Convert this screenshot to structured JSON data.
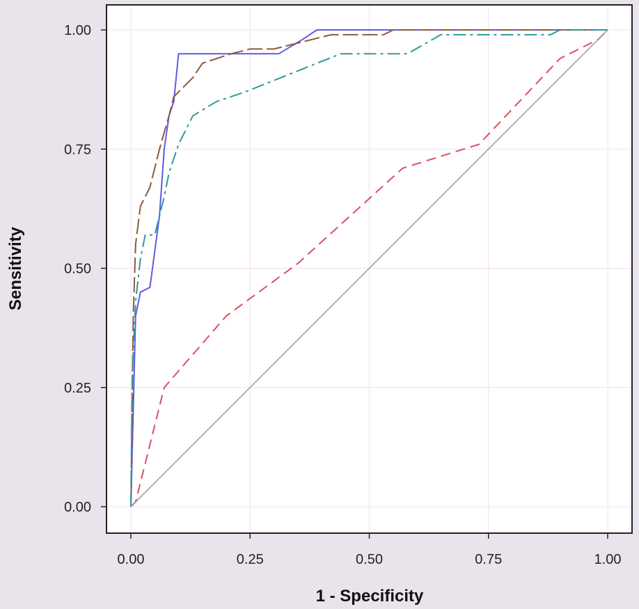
{
  "chart_data": {
    "type": "line",
    "title": "",
    "xlabel": "1 - Specificity",
    "ylabel": "Sensitivity",
    "xlim": [
      0,
      1
    ],
    "ylim": [
      0,
      1
    ],
    "xticks": [
      "0.00",
      "0.25",
      "0.50",
      "0.75",
      "1.00"
    ],
    "yticks": [
      "0.00",
      "0.25",
      "0.50",
      "0.75",
      "1.00"
    ],
    "grid": true,
    "legend": "none",
    "colors": {
      "background": "#e9e3ec",
      "plot_background": "#ffffff",
      "grid": "#f2dff2",
      "axis": "#222222"
    },
    "series": [
      {
        "color": "#5c5ce6",
        "dash": "solid",
        "x": [
          0,
          0.005,
          0.01,
          0.02,
          0.04,
          0.06,
          0.07,
          0.08,
          0.09,
          0.1,
          0.31,
          0.36,
          0.39,
          1.0
        ],
        "y": [
          0,
          0.2,
          0.4,
          0.45,
          0.46,
          0.61,
          0.75,
          0.82,
          0.85,
          0.95,
          0.95,
          0.98,
          1.0,
          1.0
        ]
      },
      {
        "color": "#8c5a3c",
        "dash": "long",
        "x": [
          0,
          0.002,
          0.005,
          0.01,
          0.02,
          0.04,
          0.06,
          0.08,
          0.09,
          0.13,
          0.15,
          0.21,
          0.25,
          0.3,
          0.42,
          0.53,
          0.55,
          1.0
        ],
        "y": [
          0,
          0.15,
          0.4,
          0.55,
          0.63,
          0.67,
          0.75,
          0.82,
          0.86,
          0.9,
          0.93,
          0.95,
          0.96,
          0.96,
          0.99,
          0.99,
          1.0,
          1.0
        ]
      },
      {
        "color": "#2b9a96",
        "dash": "dashdot",
        "x": [
          0,
          0.003,
          0.01,
          0.02,
          0.03,
          0.05,
          0.07,
          0.08,
          0.1,
          0.13,
          0.18,
          0.24,
          0.34,
          0.44,
          0.58,
          0.65,
          0.88,
          0.9,
          1.0
        ],
        "y": [
          0,
          0.28,
          0.43,
          0.52,
          0.57,
          0.57,
          0.65,
          0.7,
          0.76,
          0.82,
          0.85,
          0.87,
          0.91,
          0.95,
          0.95,
          0.99,
          0.99,
          1.0,
          1.0
        ]
      },
      {
        "color": "#d94f63",
        "dash": "dash",
        "x": [
          0,
          0.01,
          0.07,
          0.2,
          0.35,
          0.57,
          0.73,
          0.9,
          0.98,
          1.0
        ],
        "y": [
          0,
          0.01,
          0.25,
          0.4,
          0.51,
          0.71,
          0.76,
          0.94,
          0.98,
          1.0
        ]
      },
      {
        "color": "#999999",
        "dash": "solid",
        "x": [
          0,
          1
        ],
        "y": [
          0,
          1
        ]
      }
    ]
  }
}
